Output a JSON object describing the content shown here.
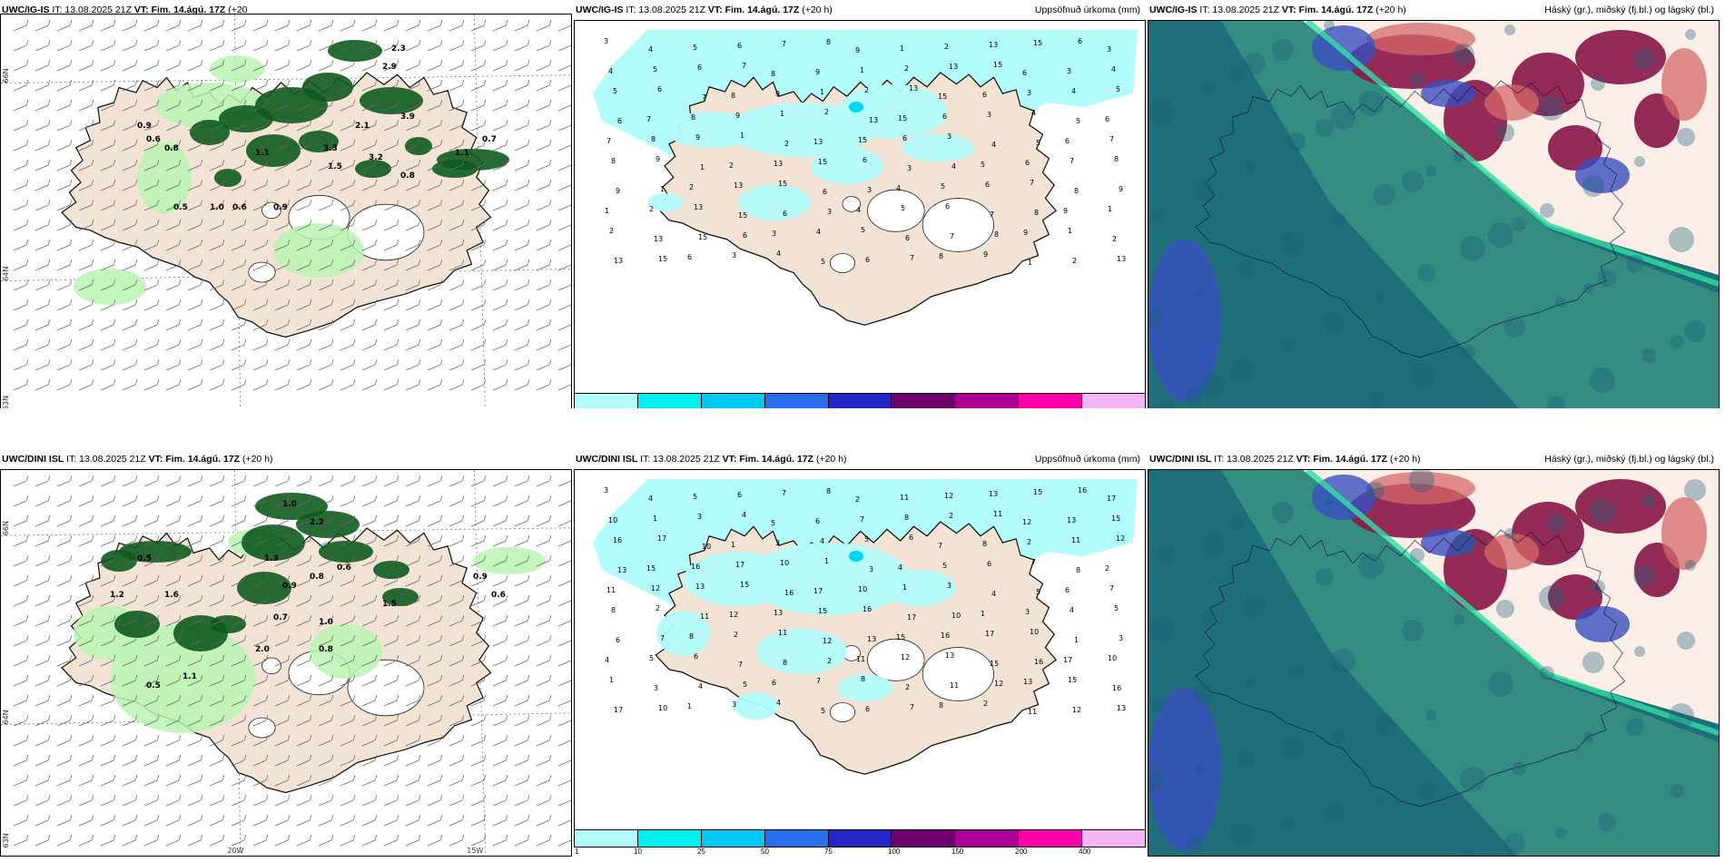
{
  "panels": [
    {
      "id": "igis-wind",
      "model": "UWC/IG-IS",
      "it": "IT: 13.08.2025 21Z",
      "vt": "VT: Fim. 14.ágú. 17Z",
      "lead": "(+20",
      "lead_cont": "h)",
      "right_label": "",
      "labels": [
        "2.3",
        "2.9",
        "3.9",
        "1.1",
        "0.7",
        "0.9",
        "0.6",
        "0.8",
        "0.5",
        "1.0",
        "0.6",
        "0.9",
        "1.1",
        "3.3",
        "3.2",
        "2.1",
        "1.5",
        "0.8"
      ]
    },
    {
      "id": "igis-precip",
      "model": "UWC/IG-IS",
      "it": "IT: 13.08.2025 21Z",
      "vt": "VT: Fim. 14.ágú. 17Z",
      "lead": "(+20 h)",
      "right_label": "Uppsöfnuð úrkoma (mm)",
      "labels": [
        "3",
        "4",
        "5",
        "6",
        "7",
        "8",
        "9",
        "1",
        "2",
        "13",
        "15",
        "6"
      ]
    },
    {
      "id": "igis-cloud",
      "model": "UWC/IG-IS",
      "it": "IT: 13.08.2025 21Z",
      "vt": "VT: Fim. 14.ágú. 17Z",
      "lead": "(+20 h)",
      "right_label": "Háský (gr.), miðský (fj.bl.) og lágský (bl.)"
    },
    {
      "id": "dini-wind",
      "model": "UWC/DINI ISL",
      "it": "IT: 13.08.2025 21Z",
      "vt": "VT: Fim. 14.ágú. 17Z",
      "lead": "(+20 h)",
      "right_label": "",
      "labels": [
        "1.0",
        "2.2",
        "1.3",
        "0.9",
        "0.6",
        "0.8",
        "0.5",
        "1.2",
        "1.6",
        "0.7",
        "1.0",
        "2.0",
        "0.8",
        "1.1",
        "1.5",
        "0.9",
        "0.6",
        "0.5"
      ]
    },
    {
      "id": "dini-precip",
      "model": "UWC/DINI ISL",
      "it": "IT: 13.08.2025 21Z",
      "vt": "VT: Fim. 14.ágú. 17Z",
      "lead": "(+20 h)",
      "right_label": "Uppsöfnuð úrkoma (mm)",
      "labels": [
        "3",
        "4",
        "5",
        "6",
        "7",
        "8",
        "2",
        "11",
        "12",
        "13",
        "15",
        "16",
        "17",
        "10",
        "1"
      ]
    },
    {
      "id": "dini-cloud",
      "model": "UWC/DINI ISL",
      "it": "IT: 13.08.2025 21Z",
      "vt": "VT: Fim. 14.ágú. 17Z",
      "lead": "(+20 h)",
      "right_label": "Háský (gr.), miðský (fj.bl.) og lágský (bl.)"
    }
  ],
  "axes": {
    "lat1": "66N",
    "lat2": "64N",
    "lat3": "63N",
    "lon1": "20W",
    "lon2": "15W"
  },
  "precip_legend": {
    "ticks": [
      "1",
      "10",
      "25",
      "50",
      "75",
      "100",
      "150",
      "200",
      "400"
    ],
    "colors": [
      "#b3fcfc",
      "#00f0f0",
      "#00c8f0",
      "#2a6ef0",
      "#2626c8",
      "#6e006e",
      "#aa0096",
      "#ff00aa",
      "#f5b4f5"
    ]
  },
  "colors": {
    "land": "#f2e3d5",
    "sea": "#ffffff",
    "light_precip": "#b3fcfc",
    "green_light": "#b8f5b0",
    "green_dark": "#0e5a1e",
    "cloud_low": "#1f6f7a",
    "cloud_mid": "#3a4fbf",
    "cloud_high": "#8a1a4a"
  }
}
